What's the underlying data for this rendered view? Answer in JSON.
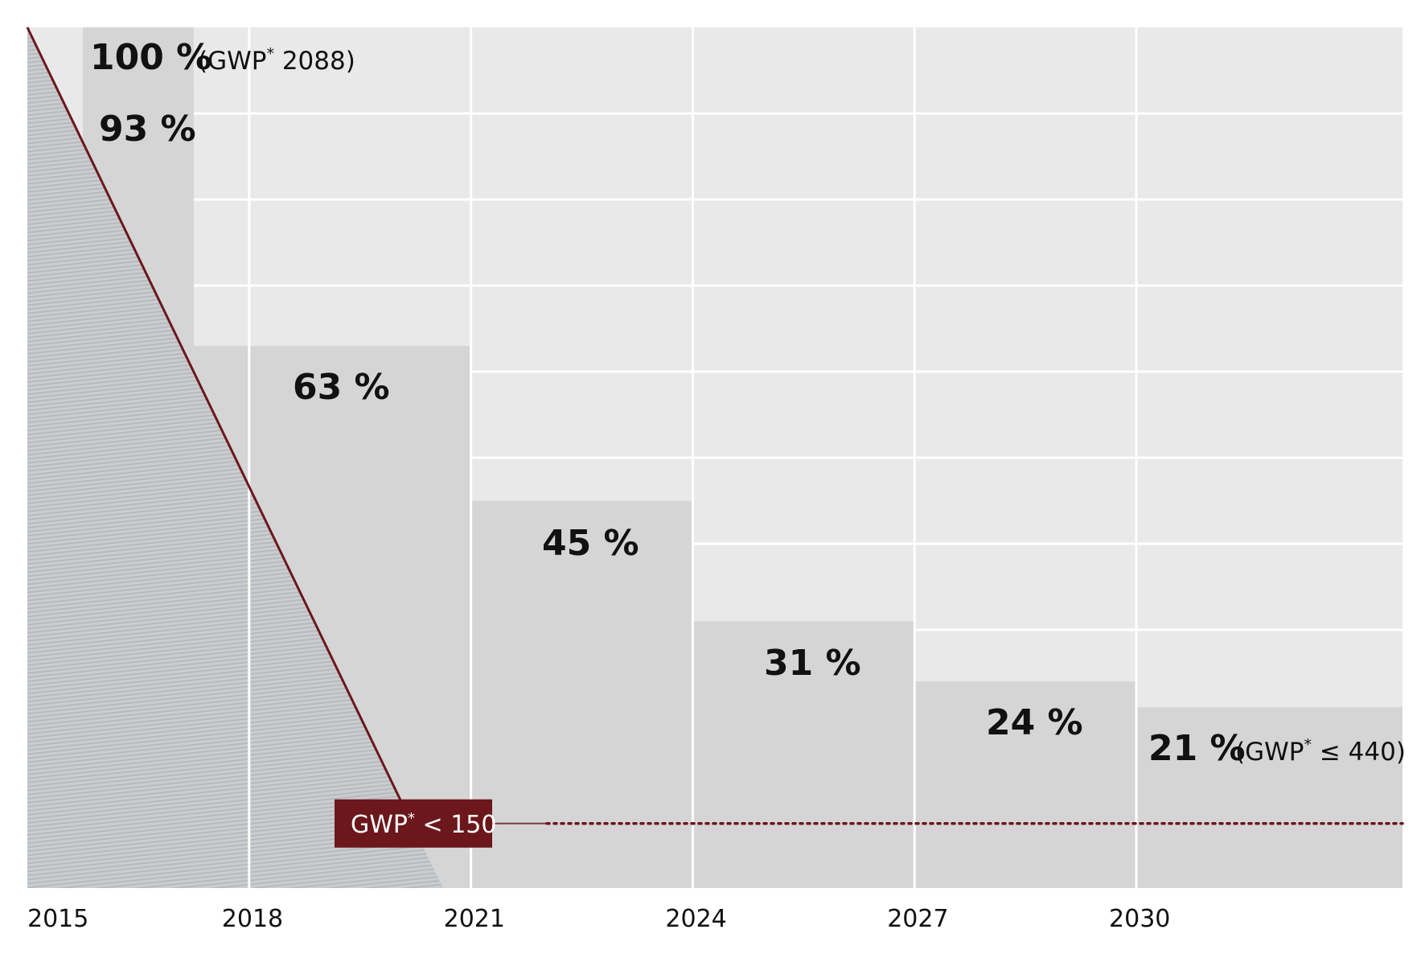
{
  "chart_data": {
    "type": "bar",
    "x_ticks": [
      "2015",
      "2018",
      "2021",
      "2024",
      "2027",
      "2030"
    ],
    "periods": [
      {
        "start": 2015.75,
        "end": 2017.25,
        "value": 100,
        "label": "100 %",
        "note_prefix": "(GWP",
        "note_suffix": " 2088)"
      },
      {
        "start": 2015.75,
        "end": 2017.25,
        "value": 93,
        "label": "93 %"
      },
      {
        "start": 2017.25,
        "end": 2021,
        "value": 63,
        "label": "63 %"
      },
      {
        "start": 2021,
        "end": 2024,
        "value": 45,
        "label": "45 %"
      },
      {
        "start": 2024,
        "end": 2027,
        "value": 31,
        "label": "31 %"
      },
      {
        "start": 2027,
        "end": 2030,
        "value": 24,
        "label": "24 %"
      },
      {
        "start": 2030,
        "end": 2033.6,
        "value": 21,
        "label": "21 %",
        "note_prefix": "(GWP",
        "note_suffix": " ≤ 440)"
      }
    ],
    "threshold": {
      "label_prefix": "GWP",
      "label_suffix": " < 150",
      "value": 7.5
    },
    "decline_line": {
      "from": [
        2015,
        100
      ],
      "to": [
        2020.2,
        7.5
      ]
    },
    "xlim": [
      2015,
      2033.6
    ],
    "ylim": [
      0,
      100
    ],
    "grid": true,
    "grid_step": 10,
    "colors": {
      "background": "#e9e9e9",
      "bars": "#d5d5d6",
      "grid": "#ffffff",
      "accent": "#6b171b",
      "hatch": "#b9bcc0"
    }
  }
}
